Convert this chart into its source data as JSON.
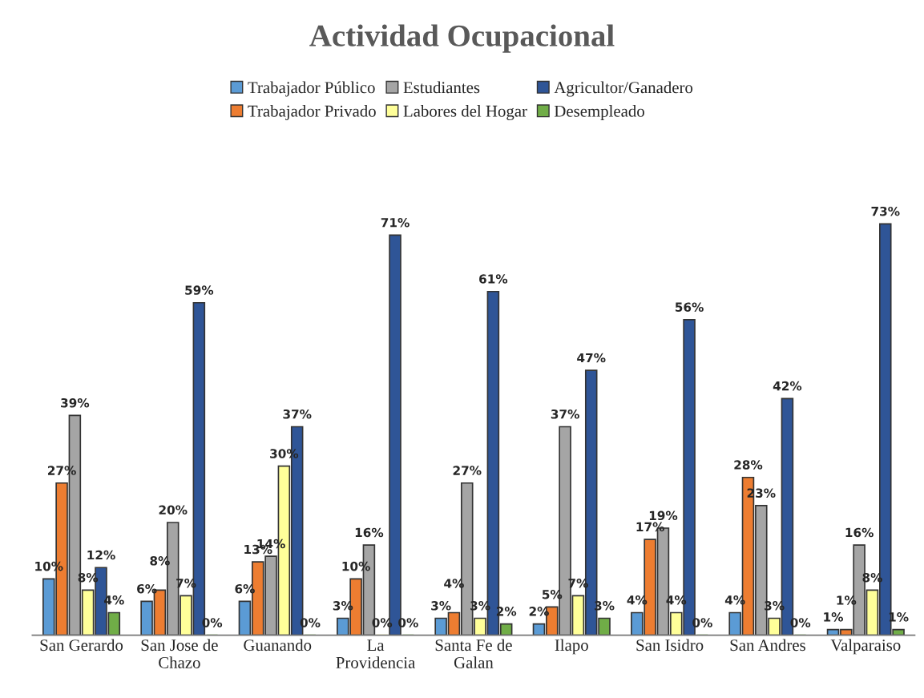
{
  "chart_data": {
    "type": "bar",
    "title": "Actividad Ocupacional",
    "categories": [
      "San Gerardo",
      "San Jose de\nChazo",
      "Guanando",
      "La\nProvidencia",
      "Santa Fe de\nGalan",
      "Ilapo",
      "San Isidro",
      "San Andres",
      "Valparaiso"
    ],
    "series": [
      {
        "name": "Trabajador Público",
        "color": "#5b9bd5",
        "values": [
          10,
          6,
          6,
          3,
          3,
          2,
          4,
          4,
          1
        ],
        "value_labels": [
          "10%",
          "6%",
          "6%",
          "3%",
          "3%",
          "2%",
          "4%",
          "4%",
          "1%"
        ]
      },
      {
        "name": "Trabajador Privado",
        "color": "#ed7d31",
        "values": [
          27,
          8,
          13,
          10,
          4,
          5,
          17,
          28,
          1
        ],
        "value_labels": [
          "27%",
          "8%",
          "13%",
          "10%",
          "4%",
          "5%",
          "17%",
          "28%",
          "1%"
        ]
      },
      {
        "name": "Estudiantes",
        "color": "#a5a5a5",
        "values": [
          39,
          20,
          14,
          16,
          27,
          37,
          19,
          23,
          16
        ],
        "value_labels": [
          "39%",
          "20%",
          "14%",
          "16%",
          "27%",
          "37%",
          "19%",
          "23%",
          "16%"
        ]
      },
      {
        "name": "Labores del Hogar",
        "color": "#ffff99",
        "values": [
          8,
          7,
          30,
          0,
          3,
          7,
          4,
          3,
          8
        ],
        "value_labels": [
          "8%",
          "7%",
          "30%",
          "0%",
          "3%",
          "7%",
          "4%",
          "3%",
          "8%"
        ]
      },
      {
        "name": "Agricultor/Ganadero",
        "color": "#2f5597",
        "values": [
          12,
          59,
          37,
          71,
          61,
          47,
          56,
          42,
          73
        ],
        "value_labels": [
          "12%",
          "59%",
          "37%",
          "71%",
          "61%",
          "47%",
          "56%",
          "42%",
          "73%"
        ]
      },
      {
        "name": "Desempleado",
        "color": "#70ad47",
        "values": [
          4,
          0,
          0,
          0,
          2,
          3,
          0,
          0,
          1
        ],
        "value_labels": [
          "4%",
          "0%",
          "0%",
          "0%",
          "2%",
          "3%",
          "0%",
          "0%",
          "1%"
        ]
      }
    ],
    "legend": "top",
    "grid": false,
    "tick_labels": "x"
  }
}
